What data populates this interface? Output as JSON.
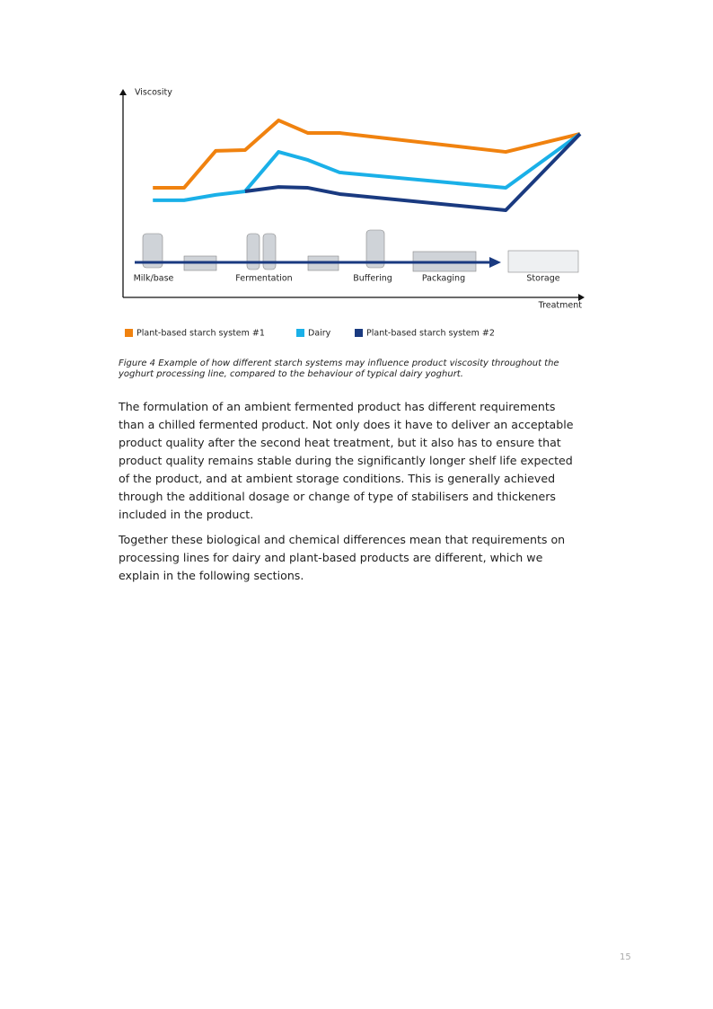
{
  "chart_data": {
    "type": "line",
    "y_label": "Viscosity",
    "x_label": "Treatment",
    "xlim": [
      0,
      100
    ],
    "ylim": [
      0,
      100
    ],
    "stages": [
      "Milk/base",
      "Fermentation",
      "Buffering",
      "Packaging",
      "Storage"
    ],
    "series": [
      {
        "name": "Plant-based starch system #1",
        "color": "#f0820f",
        "x": [
          6.5,
          13.3,
          20.2,
          26.6,
          33.9,
          40.3,
          47.2,
          83.4,
          99.6
        ],
        "values": [
          52.8,
          52.8,
          70.6,
          71.0,
          85.3,
          79.2,
          79.2,
          70.1,
          78.8
        ]
      },
      {
        "name": "Dairy",
        "color": "#1ab0e8",
        "x": [
          6.5,
          13.3,
          20.2,
          26.6,
          33.9,
          40.3,
          47.2,
          83.4,
          99.6
        ],
        "values": [
          46.8,
          46.8,
          49.4,
          51.1,
          70.1,
          66.2,
          60.2,
          52.8,
          78.8
        ]
      },
      {
        "name": "Plant-based starch system #2",
        "color": "#1a3a80",
        "x": [
          26.6,
          33.9,
          40.3,
          47.2,
          83.4,
          99.6
        ],
        "values": [
          51.1,
          53.2,
          52.8,
          49.8,
          42.0,
          78.8
        ]
      }
    ]
  },
  "caption": "Figure 4 Example of how different starch systems may influence product viscosity throughout the yoghurt processing line, compared to the behaviour of typical dairy yoghurt.",
  "paragraphs": [
    "The formulation of an ambient fermented product has different requirements than a chilled fermented product. Not only does it have to deliver an acceptable product quality after the second heat treatment, but it also has to ensure that product quality remains stable during the significantly longer shelf life expected of the product, and at ambient storage conditions. This is generally achieved through the additional dosage or change of type of stabilisers and thickeners included in the product.",
    "Together these biological and chemical differences mean that requirements on processing lines for dairy and plant-based products are different, which we explain in the following sections."
  ],
  "page_number": "15"
}
